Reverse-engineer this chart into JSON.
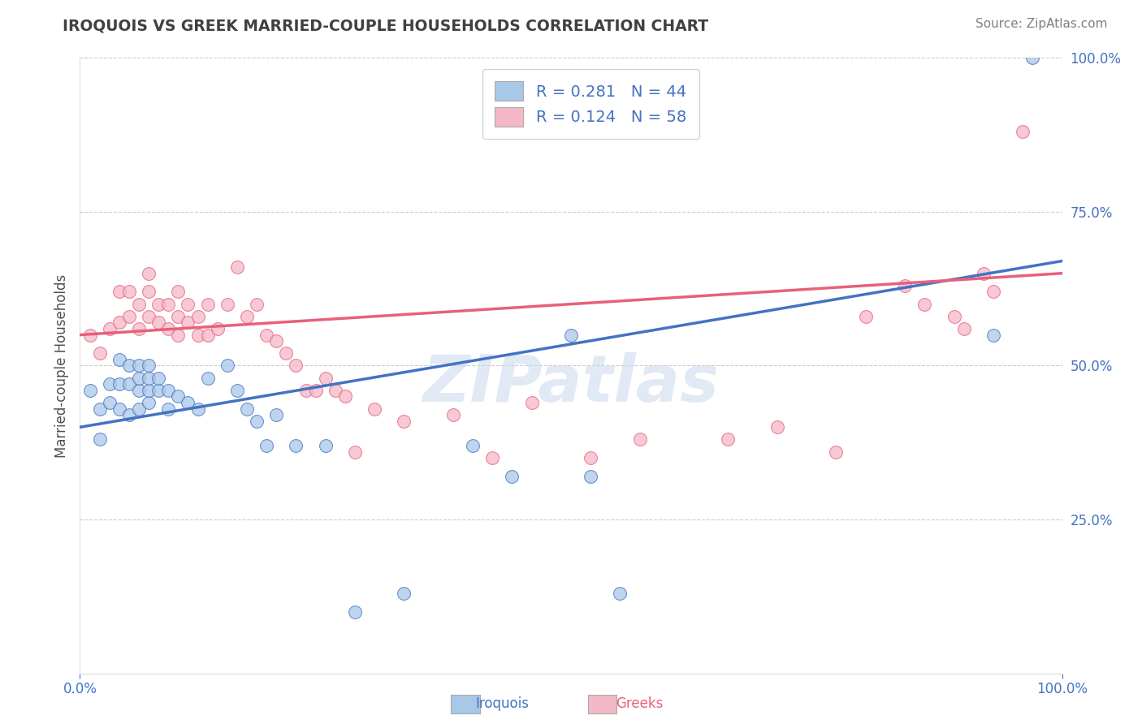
{
  "title": "IROQUOIS VS GREEK MARRIED-COUPLE HOUSEHOLDS CORRELATION CHART",
  "source_text": "Source: ZipAtlas.com",
  "ylabel": "Married-couple Households",
  "legend_label1": "R = 0.281   N = 44",
  "legend_label2": "R = 0.124   N = 58",
  "xmin": 0.0,
  "xmax": 1.0,
  "ymin": 0.0,
  "ymax": 1.0,
  "color_blue": "#A8C8E8",
  "color_pink": "#F4B8C8",
  "color_blue_line": "#4472C4",
  "color_pink_line": "#E8607A",
  "color_title": "#404040",
  "color_source": "#808080",
  "watermark": "ZIPatlas",
  "background_color": "#FFFFFF",
  "grid_color": "#CCCCCC",
  "blue_scatter_x": [
    0.01,
    0.02,
    0.02,
    0.03,
    0.03,
    0.04,
    0.04,
    0.04,
    0.05,
    0.05,
    0.05,
    0.06,
    0.06,
    0.06,
    0.06,
    0.07,
    0.07,
    0.07,
    0.07,
    0.08,
    0.08,
    0.09,
    0.09,
    0.1,
    0.11,
    0.12,
    0.13,
    0.15,
    0.16,
    0.17,
    0.18,
    0.19,
    0.2,
    0.22,
    0.25,
    0.28,
    0.33,
    0.4,
    0.44,
    0.5,
    0.52,
    0.55,
    0.93,
    0.97
  ],
  "blue_scatter_y": [
    0.46,
    0.38,
    0.43,
    0.44,
    0.47,
    0.43,
    0.47,
    0.51,
    0.42,
    0.47,
    0.5,
    0.43,
    0.46,
    0.48,
    0.5,
    0.44,
    0.46,
    0.48,
    0.5,
    0.46,
    0.48,
    0.43,
    0.46,
    0.45,
    0.44,
    0.43,
    0.48,
    0.5,
    0.46,
    0.43,
    0.41,
    0.37,
    0.42,
    0.37,
    0.37,
    0.1,
    0.13,
    0.37,
    0.32,
    0.55,
    0.32,
    0.13,
    0.55,
    1.0
  ],
  "pink_scatter_x": [
    0.01,
    0.02,
    0.03,
    0.04,
    0.04,
    0.05,
    0.05,
    0.06,
    0.06,
    0.07,
    0.07,
    0.07,
    0.08,
    0.08,
    0.09,
    0.09,
    0.1,
    0.1,
    0.1,
    0.11,
    0.11,
    0.12,
    0.12,
    0.13,
    0.13,
    0.14,
    0.15,
    0.16,
    0.17,
    0.18,
    0.19,
    0.2,
    0.21,
    0.22,
    0.23,
    0.24,
    0.25,
    0.26,
    0.27,
    0.28,
    0.3,
    0.33,
    0.38,
    0.42,
    0.46,
    0.52,
    0.57,
    0.66,
    0.71,
    0.77,
    0.8,
    0.84,
    0.86,
    0.89,
    0.9,
    0.92,
    0.93,
    0.96
  ],
  "pink_scatter_y": [
    0.55,
    0.52,
    0.56,
    0.57,
    0.62,
    0.58,
    0.62,
    0.56,
    0.6,
    0.58,
    0.62,
    0.65,
    0.57,
    0.6,
    0.56,
    0.6,
    0.55,
    0.58,
    0.62,
    0.57,
    0.6,
    0.55,
    0.58,
    0.55,
    0.6,
    0.56,
    0.6,
    0.66,
    0.58,
    0.6,
    0.55,
    0.54,
    0.52,
    0.5,
    0.46,
    0.46,
    0.48,
    0.46,
    0.45,
    0.36,
    0.43,
    0.41,
    0.42,
    0.35,
    0.44,
    0.35,
    0.38,
    0.38,
    0.4,
    0.36,
    0.58,
    0.63,
    0.6,
    0.58,
    0.56,
    0.65,
    0.62,
    0.88
  ],
  "blue_line_x": [
    0.0,
    1.0
  ],
  "blue_line_y": [
    0.4,
    0.67
  ],
  "pink_line_x": [
    0.0,
    1.0
  ],
  "pink_line_y": [
    0.55,
    0.65
  ]
}
